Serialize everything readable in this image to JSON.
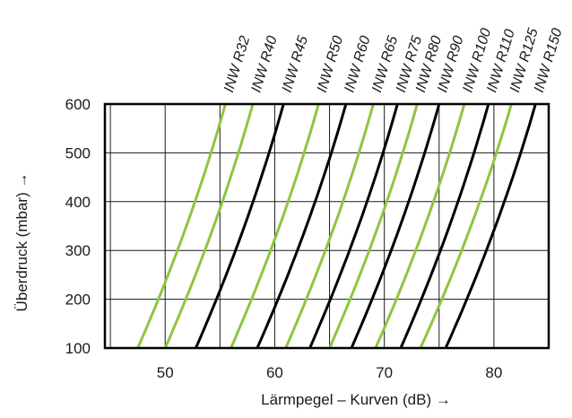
{
  "chart_data": {
    "type": "line",
    "title": "",
    "xlabel": "Lärmpegel – Kurven (dB) →",
    "ylabel": "Überdruck  (mbar) →",
    "xlim": [
      44.5,
      85
    ],
    "ylim": [
      100,
      600
    ],
    "x_ticks": [
      50,
      60,
      70,
      80
    ],
    "y_ticks": [
      100,
      200,
      300,
      400,
      500,
      600
    ],
    "grid": true,
    "colors": {
      "green": "#8dc63f",
      "black": "#000000",
      "grid": "#1a1a1a"
    },
    "series": [
      {
        "name": "INW R32",
        "color": "#8dc63f",
        "x0": 47.5,
        "x1": 55.5
      },
      {
        "name": "INW R40",
        "color": "#8dc63f",
        "x0": 50.0,
        "x1": 58.0
      },
      {
        "name": "INW R45",
        "color": "#000000",
        "x0": 52.8,
        "x1": 60.8
      },
      {
        "name": "INW R50",
        "color": "#8dc63f",
        "x0": 56.0,
        "x1": 64.0
      },
      {
        "name": "INW R60",
        "color": "#000000",
        "x0": 58.4,
        "x1": 66.5
      },
      {
        "name": "INW R65",
        "color": "#8dc63f",
        "x0": 61.0,
        "x1": 69.0
      },
      {
        "name": "INW R75",
        "color": "#000000",
        "x0": 63.2,
        "x1": 71.2
      },
      {
        "name": "INW R80",
        "color": "#8dc63f",
        "x0": 65.0,
        "x1": 73.0
      },
      {
        "name": "INW R90",
        "color": "#000000",
        "x0": 67.0,
        "x1": 75.0
      },
      {
        "name": "INW R100",
        "color": "#8dc63f",
        "x0": 69.2,
        "x1": 77.3
      },
      {
        "name": "INW R110",
        "color": "#000000",
        "x0": 71.5,
        "x1": 79.5
      },
      {
        "name": "INW R125",
        "color": "#8dc63f",
        "x0": 73.3,
        "x1": 81.6
      },
      {
        "name": "INW R150",
        "color": "#000000",
        "x0": 75.6,
        "x1": 83.8
      }
    ]
  }
}
